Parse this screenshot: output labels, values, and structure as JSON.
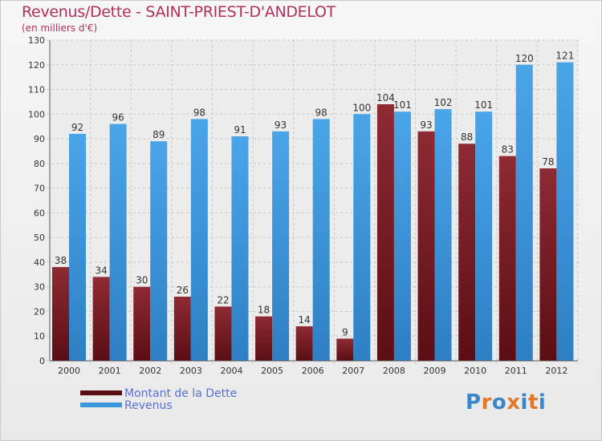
{
  "title": "Revenus/Dette - SAINT-PRIEST-D'ANDELOT",
  "subtitle": "(en milliers d'€)",
  "logo": {
    "text": "Proxiti",
    "letters": [
      {
        "ch": "P",
        "color": "#3a86c8"
      },
      {
        "ch": "r",
        "color": "#e07a2a"
      },
      {
        "ch": "o",
        "color": "#3a86c8"
      },
      {
        "ch": "x",
        "color": "#e07a2a"
      },
      {
        "ch": "i",
        "color": "#3a86c8"
      },
      {
        "ch": "t",
        "color": "#e07a2a"
      },
      {
        "ch": "i",
        "color": "#3a86c8"
      }
    ]
  },
  "chart_data": {
    "type": "bar",
    "title": "Revenus/Dette - SAINT-PRIEST-D'ANDELOT",
    "subtitle": "(en milliers d'€)",
    "categories": [
      "2000",
      "2001",
      "2002",
      "2003",
      "2004",
      "2005",
      "2006",
      "2007",
      "2008",
      "2009",
      "2010",
      "2011",
      "2012"
    ],
    "series": [
      {
        "name": "Montant de la Dette",
        "color": "#7a1c24",
        "values": [
          38,
          34,
          30,
          26,
          22,
          18,
          14,
          9,
          104,
          93,
          88,
          83,
          78
        ]
      },
      {
        "name": "Revenus",
        "color": "#3d97dd",
        "values": [
          92,
          96,
          89,
          98,
          91,
          93,
          98,
          100,
          101,
          102,
          101,
          120,
          121
        ]
      }
    ],
    "ylim": [
      0,
      130
    ],
    "yticks": [
      0,
      10,
      20,
      30,
      40,
      50,
      60,
      70,
      80,
      90,
      100,
      110,
      120,
      130
    ],
    "grid": true,
    "legend": "bottom-left"
  }
}
